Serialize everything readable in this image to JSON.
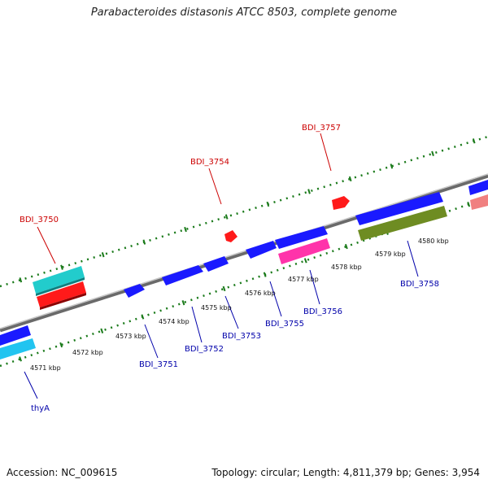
{
  "title": "Parabacteroides distasonis ATCC 8503, complete genome",
  "accession": "Accession: NC_009615",
  "stats": "Topology: circular; Length: 4,811,379 bp; Genes: 3,954",
  "colors": {
    "backbone": "#8c8c8c",
    "ruler": "#1a7a1a",
    "label_top": "#cc0000",
    "label_bottom": "#0000aa",
    "tick_text": "#111111"
  },
  "ruler_ticks": [
    "4571 kbp",
    "4572 kbp",
    "4573 kbp",
    "4574 kbp",
    "4575 kbp",
    "4576 kbp",
    "4577 kbp",
    "4578 kbp",
    "4579 kbp",
    "4580 kbp"
  ],
  "genes_top": [
    {
      "label": "BDI_3750"
    },
    {
      "label": "BDI_3754"
    },
    {
      "label": "BDI_3757"
    }
  ],
  "genes_bottom": [
    {
      "label": "thyA"
    },
    {
      "label": "BDI_3751"
    },
    {
      "label": "BDI_3752"
    },
    {
      "label": "BDI_3753"
    },
    {
      "label": "BDI_3755"
    },
    {
      "label": "BDI_3756"
    },
    {
      "label": "BDI_3758"
    }
  ]
}
